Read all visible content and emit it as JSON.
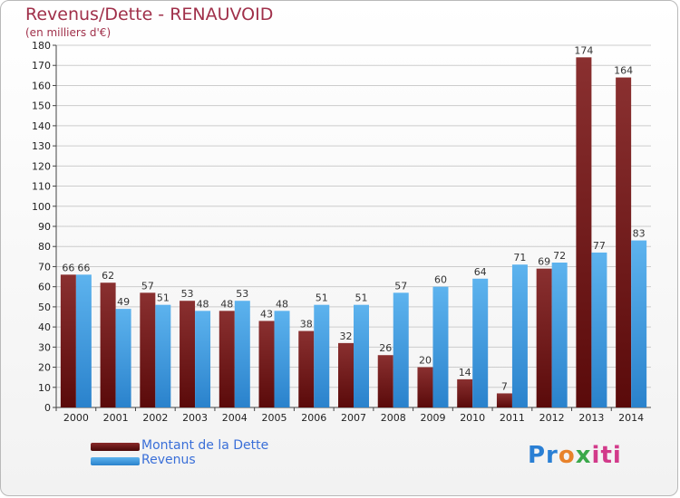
{
  "header": {
    "title": "Revenus/Dette - RENAUVOID",
    "subtitle": "(en milliers d'€)"
  },
  "legend": {
    "items": [
      {
        "label": "Montant de la Dette",
        "color": "#7a1a1a"
      },
      {
        "label": "Revenus",
        "color": "#3d9be0"
      }
    ]
  },
  "logo": {
    "text": "Proxiti"
  },
  "colors": {
    "dette_dark": "#5a0a0a",
    "dette_light": "#8a3030",
    "revenus_dark": "#2a82cc",
    "revenus_light": "#5db3ee",
    "grid": "#cccccc"
  },
  "chart_data": {
    "type": "bar",
    "title": "Revenus/Dette - RENAUVOID",
    "subtitle": "(en milliers d'€)",
    "categories": [
      "2000",
      "2001",
      "2002",
      "2003",
      "2004",
      "2005",
      "2006",
      "2007",
      "2008",
      "2009",
      "2010",
      "2011",
      "2012",
      "2013",
      "2014"
    ],
    "series": [
      {
        "name": "Montant de la Dette",
        "values": [
          66,
          62,
          57,
          53,
          48,
          43,
          38,
          32,
          26,
          20,
          14,
          7,
          69,
          174,
          164
        ]
      },
      {
        "name": "Revenus",
        "values": [
          66,
          49,
          51,
          48,
          53,
          48,
          51,
          51,
          57,
          60,
          64,
          71,
          72,
          77,
          83
        ]
      }
    ],
    "ylim": [
      0,
      180
    ],
    "yticks": [
      0,
      10,
      20,
      30,
      40,
      50,
      60,
      70,
      80,
      90,
      100,
      110,
      120,
      130,
      140,
      150,
      160,
      170,
      180
    ],
    "grid": true,
    "legend_position": "bottom-left"
  }
}
